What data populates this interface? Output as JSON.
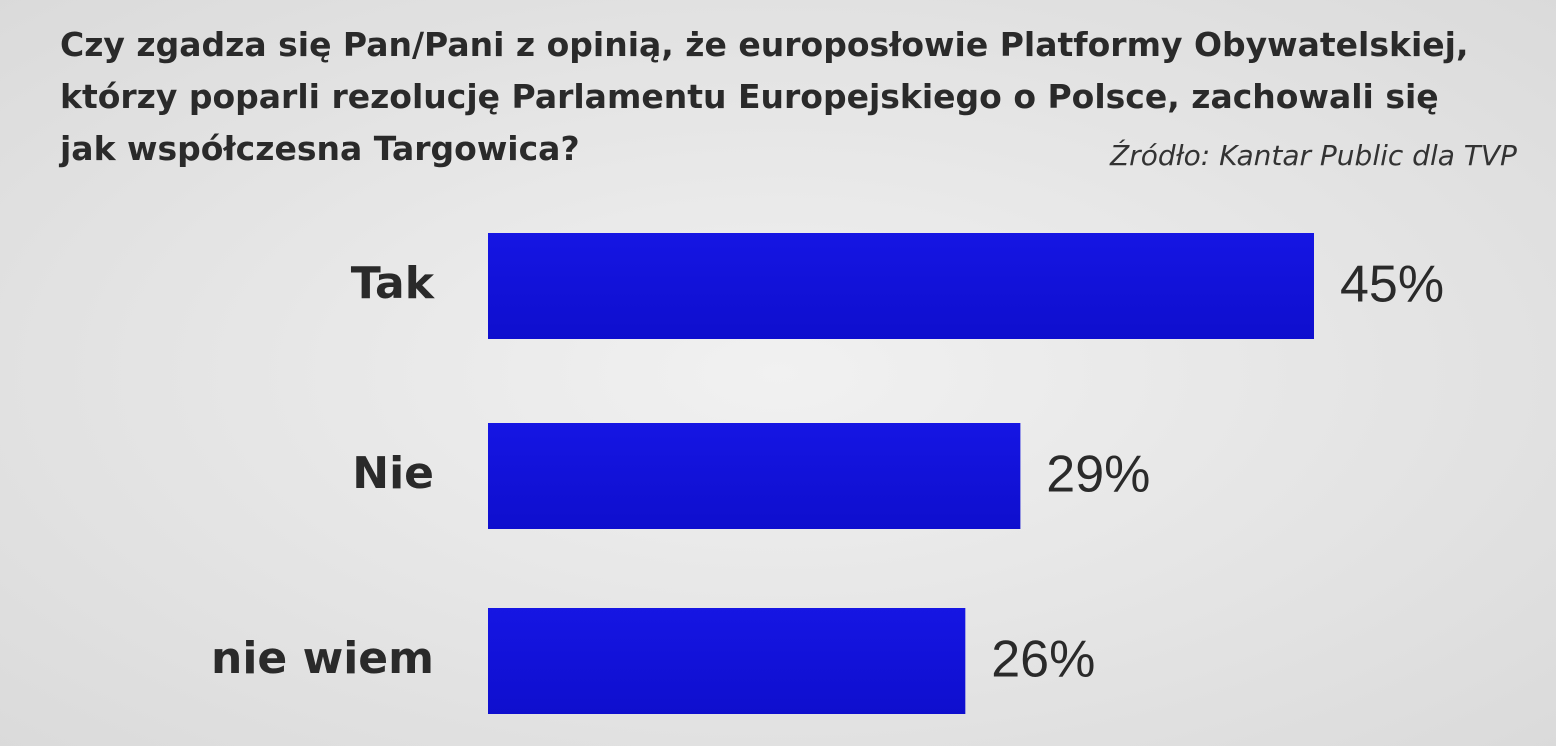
{
  "chart_data": {
    "type": "bar",
    "orientation": "horizontal",
    "title": [
      "Czy zgadza się Pan/Pani  z opinią, że europosłowie Platformy Obywatelskiej,",
      "którzy poparli rezolucję Parlamentu Europejskiego o Polsce, zachowali się",
      "jak współczesna Targowica?"
    ],
    "source": "Źródło: Kantar Public dla TVP",
    "categories": [
      "Tak",
      "Nie",
      "nie wiem"
    ],
    "values": [
      45,
      29,
      26
    ],
    "value_labels": [
      "45%",
      "29%",
      "26%"
    ],
    "color": "#1212dc"
  }
}
